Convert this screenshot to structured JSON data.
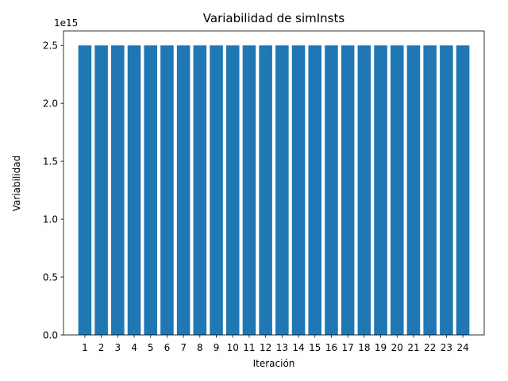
{
  "chart_data": {
    "type": "bar",
    "title": "Variabilidad de simInsts",
    "xlabel": "Iteración",
    "ylabel": "Variabilidad",
    "y_offset_label": "1e15",
    "categories": [
      "1",
      "2",
      "3",
      "4",
      "5",
      "6",
      "7",
      "8",
      "9",
      "10",
      "11",
      "12",
      "13",
      "14",
      "15",
      "16",
      "17",
      "18",
      "19",
      "20",
      "21",
      "22",
      "23",
      "24"
    ],
    "values": [
      2500000000000000.0,
      2500000000000000.0,
      2500000000000000.0,
      2500000000000000.0,
      2500000000000000.0,
      2500000000000000.0,
      2500000000000000.0,
      2500000000000000.0,
      2500000000000000.0,
      2500000000000000.0,
      2500000000000000.0,
      2500000000000000.0,
      2500000000000000.0,
      2500000000000000.0,
      2500000000000000.0,
      2500000000000000.0,
      2500000000000000.0,
      2500000000000000.0,
      2500000000000000.0,
      2500000000000000.0,
      2500000000000000.0,
      2500000000000000.0,
      2500000000000000.0,
      2500000000000000.0
    ],
    "y_scale": 1000000000000000.0,
    "ylim": [
      0,
      2625000000000000.0
    ],
    "yticks": [
      0,
      500000000000000.0,
      1000000000000000.0,
      1500000000000000.0,
      2000000000000000.0,
      2500000000000000.0
    ],
    "ytick_labels": [
      "0.0",
      "0.5",
      "1.0",
      "1.5",
      "2.0",
      "2.5"
    ],
    "bar_color": "#1f77b4",
    "grid": false
  }
}
